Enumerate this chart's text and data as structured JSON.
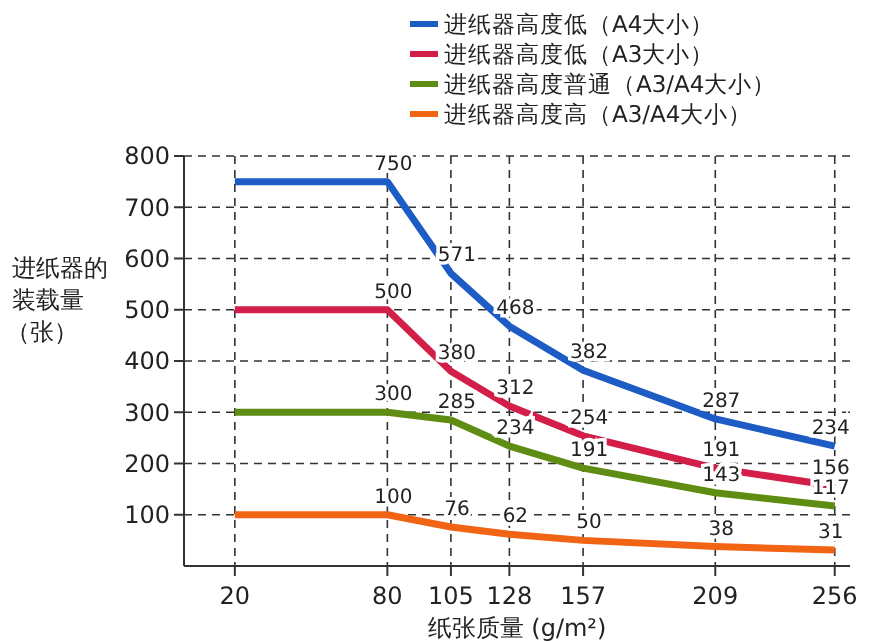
{
  "chart_data": {
    "type": "line",
    "xlabel": "纸张质量 (g/m²)",
    "ylabel": "进纸器的装载量（张）",
    "x": [
      20,
      80,
      105,
      128,
      157,
      209,
      256
    ],
    "xlim": [
      0,
      262
    ],
    "xticks": [
      20,
      80,
      105,
      128,
      157,
      209,
      256
    ],
    "ylim": [
      0,
      800
    ],
    "yticks": [
      100,
      200,
      300,
      400,
      500,
      600,
      700,
      800
    ],
    "grid": true,
    "legend": "top right",
    "marker": "none",
    "line_style": "solid",
    "series": [
      {
        "name": "进纸器高度低（A4大小）",
        "color": "#1c5cc4",
        "values": [
          750,
          750,
          571,
          468,
          382,
          287,
          234
        ],
        "value_labels": [
          null,
          "750",
          "571",
          "468",
          "382",
          "287",
          "234"
        ]
      },
      {
        "name": "进纸器高度低（A3大小）",
        "color": "#d21e48",
        "values": [
          500,
          500,
          380,
          312,
          254,
          191,
          156
        ],
        "value_labels": [
          null,
          "500",
          "380",
          "312",
          "254",
          "191",
          "156"
        ]
      },
      {
        "name": "进纸器高度普通（A3/A4大小）",
        "color": "#5f8c12",
        "values": [
          300,
          300,
          285,
          234,
          191,
          143,
          117
        ],
        "value_labels": [
          null,
          "300",
          "285",
          "234",
          "191",
          "143",
          "117"
        ]
      },
      {
        "name": "进纸器高度高（A3/A4大小）",
        "color": "#f06414",
        "values": [
          100,
          100,
          76,
          62,
          50,
          38,
          31
        ],
        "value_labels": [
          null,
          "100",
          "76",
          "62",
          "50",
          "38",
          "31"
        ]
      }
    ]
  }
}
